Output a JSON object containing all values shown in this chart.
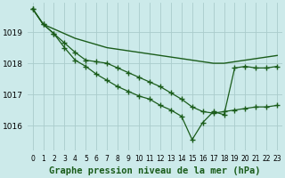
{
  "title": "Graphe pression niveau de la mer (hPa)",
  "background_color": "#cceaea",
  "grid_color": "#aacccc",
  "line_color": "#1a5c1a",
  "ylim": [
    1015.2,
    1019.95
  ],
  "yticks": [
    1016,
    1017,
    1018,
    1019
  ],
  "x_labels": [
    "0",
    "1",
    "2",
    "3",
    "4",
    "5",
    "6",
    "7",
    "8",
    "9",
    "10",
    "11",
    "12",
    "13",
    "14",
    "15",
    "16",
    "17",
    "18",
    "19",
    "20",
    "21",
    "22",
    "23"
  ],
  "series": [
    {
      "values": [
        1019.75,
        1019.25,
        1019.1,
        1018.95,
        1018.8,
        1018.7,
        1018.6,
        1018.5,
        1018.45,
        1018.4,
        1018.35,
        1018.3,
        1018.25,
        1018.2,
        1018.15,
        1018.1,
        1018.05,
        1018.0,
        1018.0,
        1018.05,
        1018.1,
        1018.15,
        1018.2,
        1018.25
      ],
      "marker": false,
      "linewidth": 1.0
    },
    {
      "values": [
        1019.75,
        1019.25,
        1018.95,
        1018.65,
        1018.35,
        1018.1,
        1018.05,
        1018.0,
        1017.85,
        1017.7,
        1017.55,
        1017.4,
        1017.25,
        1017.05,
        1016.85,
        1016.6,
        1016.45,
        1016.4,
        1016.45,
        1016.5,
        1016.55,
        1016.6,
        1016.6,
        1016.65
      ],
      "marker": true,
      "linewidth": 0.9
    },
    {
      "values": [
        1019.75,
        1019.25,
        1018.95,
        1018.5,
        1018.1,
        1017.9,
        1017.65,
        1017.45,
        1017.25,
        1017.1,
        1016.95,
        1016.85,
        1016.65,
        1016.5,
        1016.3,
        1015.55,
        1016.1,
        1016.45,
        1016.35,
        1017.85,
        1017.9,
        1017.85,
        1017.85,
        1017.9
      ],
      "marker": true,
      "linewidth": 0.9
    }
  ],
  "marker_style": "+",
  "marker_size": 4.0,
  "xlabel_fontsize": 5.5,
  "ylabel_fontsize": 6.5,
  "title_fontsize": 7.5,
  "figsize": [
    3.2,
    2.0
  ],
  "dpi": 100
}
